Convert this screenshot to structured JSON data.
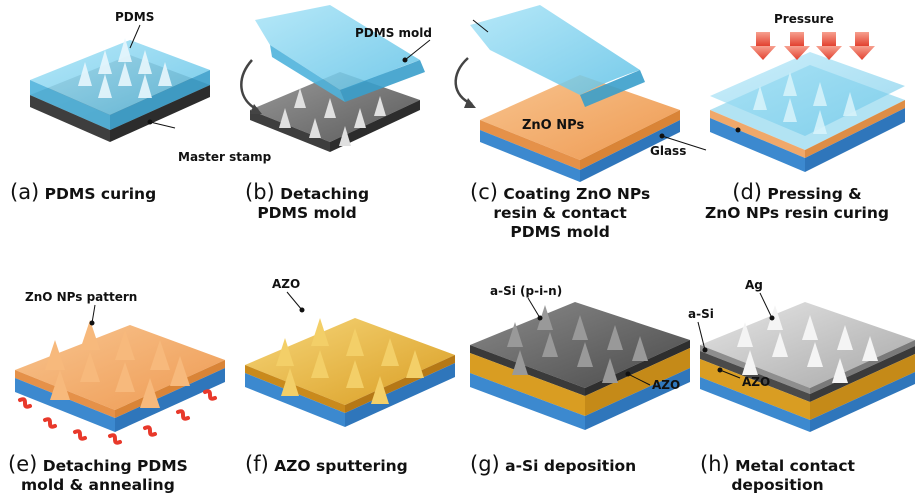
{
  "steps": [
    {
      "letter": "(a)",
      "line1": "PDMS curing",
      "line2": "",
      "line3": ""
    },
    {
      "letter": "(b)",
      "line1": "Detaching",
      "line2": "PDMS mold",
      "line3": ""
    },
    {
      "letter": "(c)",
      "line1": "Coating ZnO NPs",
      "line2": "resin & contact",
      "line3": "PDMS mold"
    },
    {
      "letter": "(d)",
      "line1": "Pressing &",
      "line2": "ZnO NPs resin curing",
      "line3": ""
    },
    {
      "letter": "(e)",
      "line1": "Detaching PDMS",
      "line2": "mold & annealing",
      "line3": ""
    },
    {
      "letter": "(f)",
      "line1": "AZO sputtering",
      "line2": "",
      "line3": ""
    },
    {
      "letter": "(g)",
      "line1": "a-Si deposition",
      "line2": "",
      "line3": ""
    },
    {
      "letter": "(h)",
      "line1": "Metal contact",
      "line2": "deposition",
      "line3": ""
    }
  ],
  "labels": {
    "pdms": "PDMS",
    "master_stamp": "Master stamp",
    "pdms_mold": "PDMS mold",
    "zno_nps": "ZnO NPs",
    "glass": "Glass",
    "pressure": "Pressure",
    "zno_pattern": "ZnO NPs pattern",
    "azo_f": "AZO",
    "asi_pin": "a-Si (p-i-n)",
    "azo_g": "AZO",
    "ag": "Ag",
    "asi_h": "a-Si",
    "azo_h": "AZO"
  },
  "colors": {
    "pdms": "#7fd0ec",
    "stamp": "#6f6f6f",
    "zno": "#f2a765",
    "glass": "#3d8fd6",
    "azo": "#e5b13c",
    "asi": "#5a5a5a",
    "ag": "#bdbdbd",
    "arrow": "#e84c3d",
    "heat": "#e8392b"
  }
}
